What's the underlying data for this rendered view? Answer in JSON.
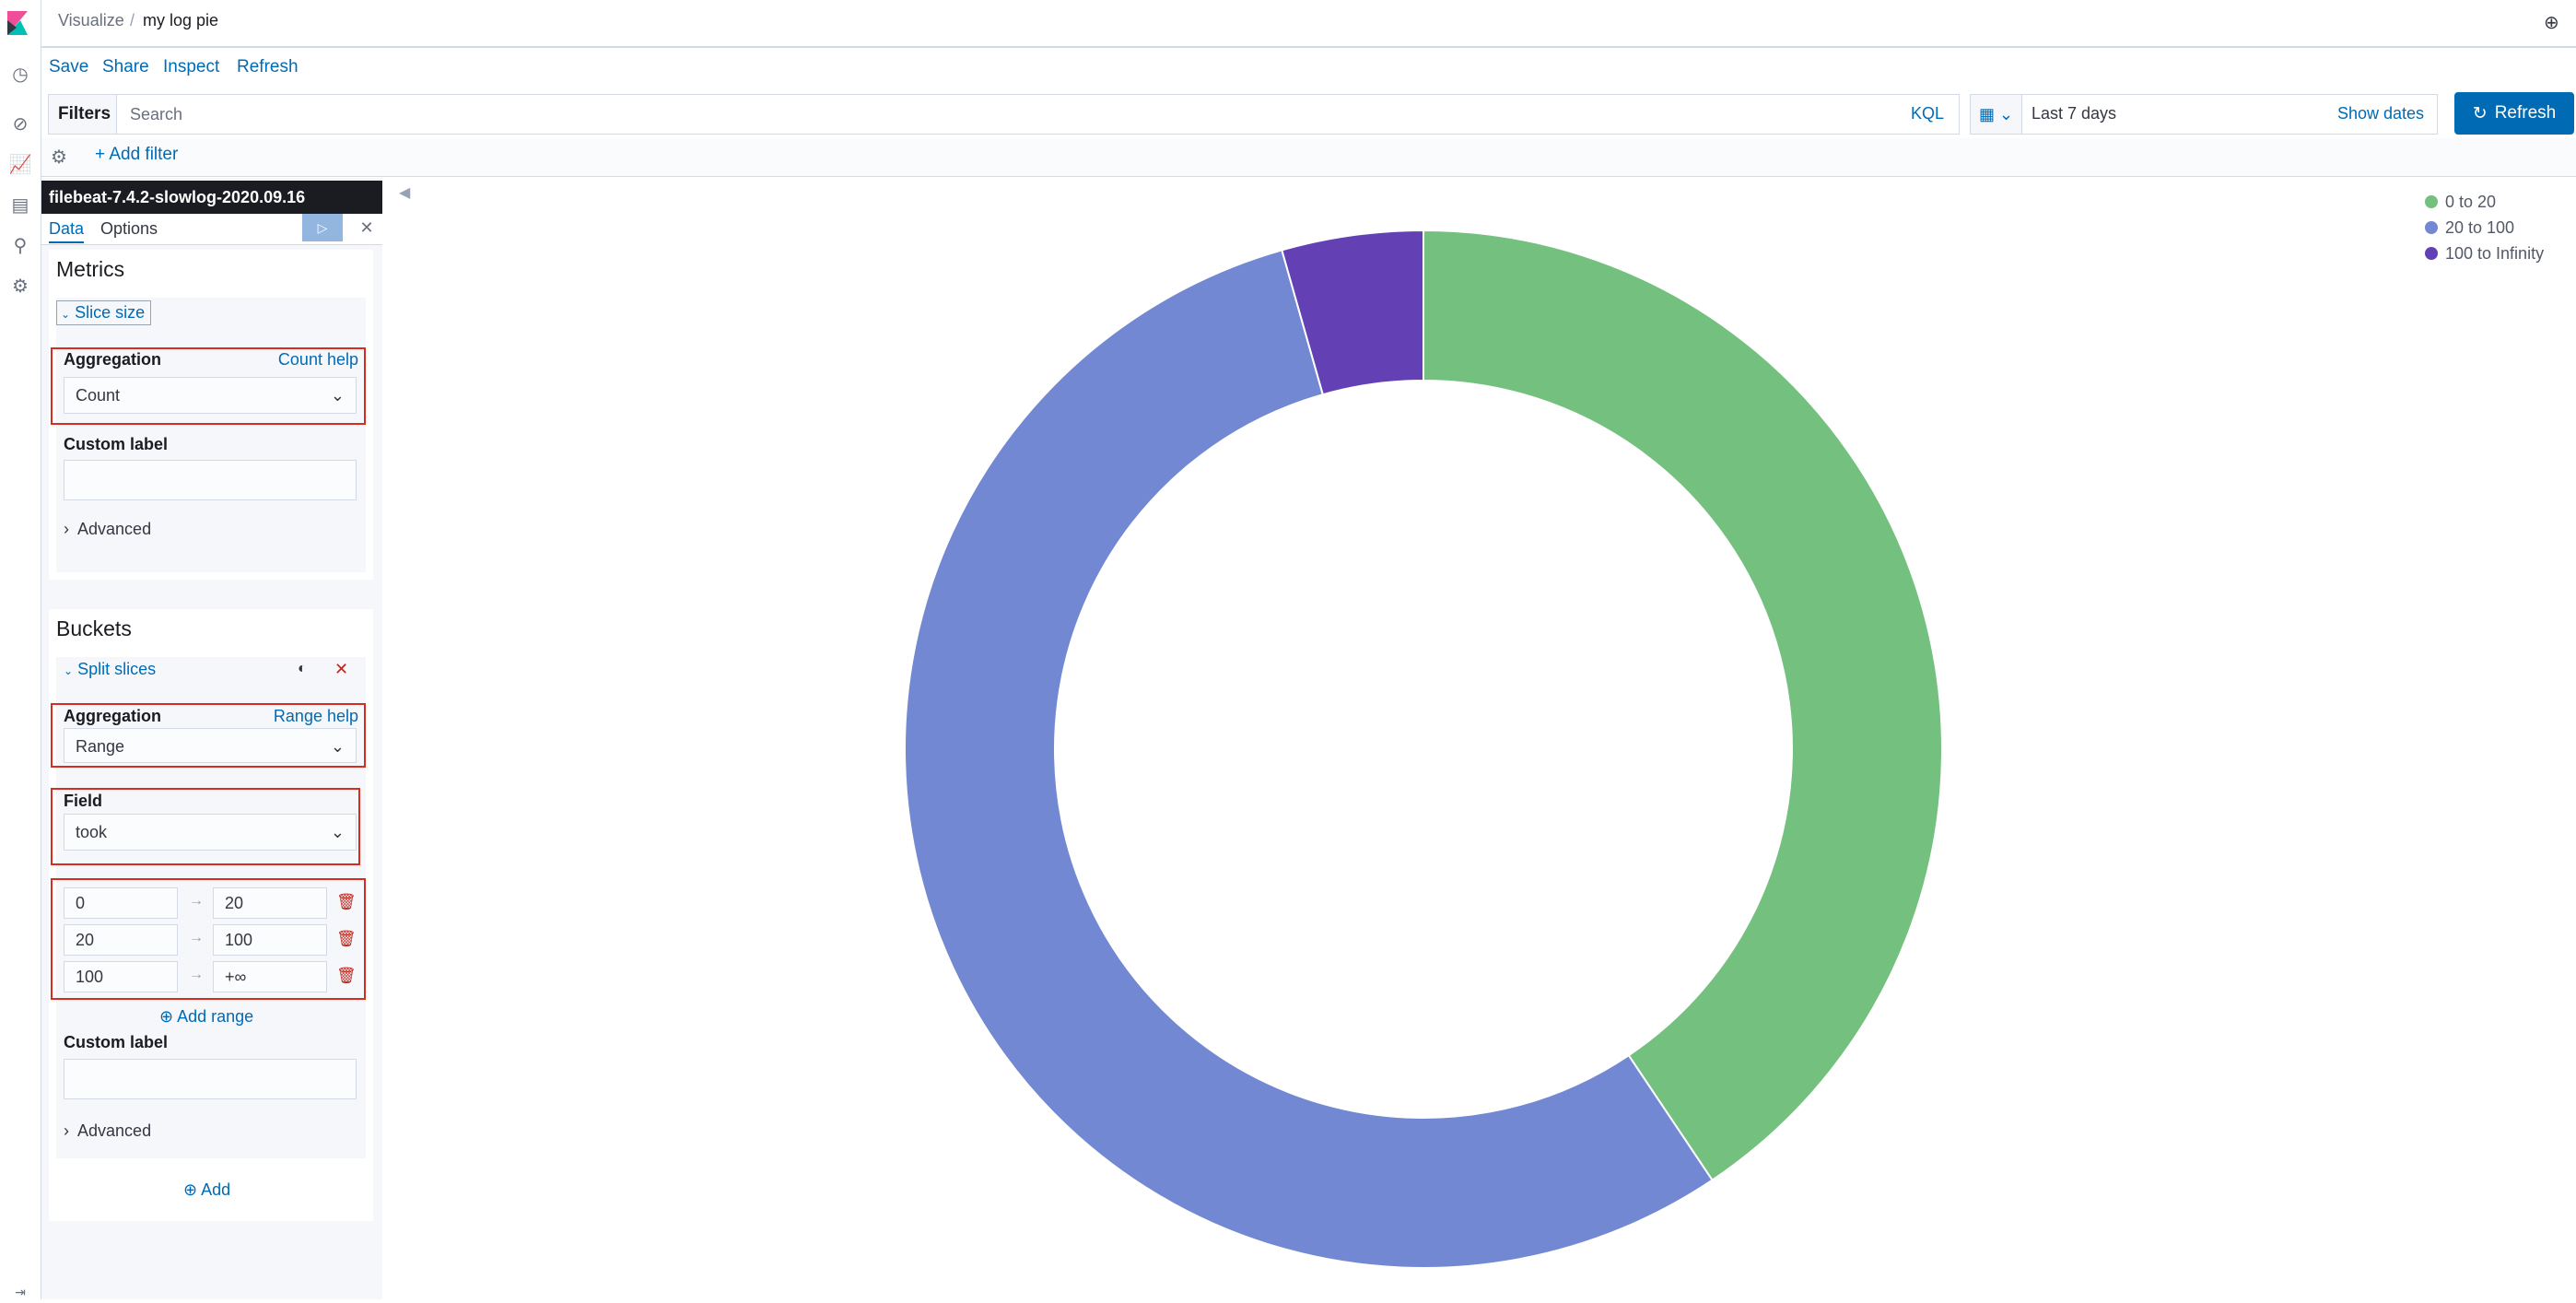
{
  "header": {
    "app": "Visualize",
    "separator": "/",
    "title": "my log pie"
  },
  "top_menu": {
    "save": "Save",
    "share": "Share",
    "inspect": "Inspect",
    "refresh": "Refresh"
  },
  "query_bar": {
    "filters_label": "Filters",
    "search_placeholder": "Search",
    "kql": "KQL",
    "date_range": "Last 7 days",
    "show_dates": "Show dates",
    "refresh": "Refresh"
  },
  "filter_row": {
    "add_filter": "+ Add filter"
  },
  "editor": {
    "index_pattern": "filebeat-7.4.2-slowlog-2020.09.16",
    "tabs": {
      "data": "Data",
      "options": "Options"
    },
    "metrics": {
      "title": "Metrics",
      "accordion": "Slice size",
      "aggregation_label": "Aggregation",
      "aggregation_help": "Count help",
      "aggregation_value": "Count",
      "custom_label": "Custom label",
      "advanced": "Advanced"
    },
    "buckets": {
      "title": "Buckets",
      "accordion": "Split slices",
      "aggregation_label": "Aggregation",
      "aggregation_help": "Range help",
      "aggregation_value": "Range",
      "field_label": "Field",
      "field_value": "took",
      "ranges": [
        {
          "from": "0",
          "to": "20"
        },
        {
          "from": "20",
          "to": "100"
        },
        {
          "from": "100",
          "to": "+∞"
        }
      ],
      "add_range": "Add range",
      "custom_label": "Custom label",
      "advanced": "Advanced",
      "add": "Add"
    }
  },
  "chart_data": {
    "type": "pie",
    "donut": true,
    "legend_position": "top-right",
    "categories": [
      "0 to 20",
      "20 to 100",
      "100 to Infinity"
    ],
    "values": [
      40.6,
      55.0,
      4.4
    ],
    "colors": [
      "#74c07e",
      "#7288d2",
      "#6440b5"
    ]
  },
  "icons": {
    "nav": [
      "kibana-logo",
      "clock-icon",
      "discover-icon",
      "visualize-icon",
      "dashboard-icon",
      "dev-tools-icon",
      "settings-icon"
    ],
    "header_right": "help-icon"
  },
  "colors": {
    "accent": "#006bb4",
    "danger": "#bd271e",
    "dark": "#1a1c21"
  }
}
